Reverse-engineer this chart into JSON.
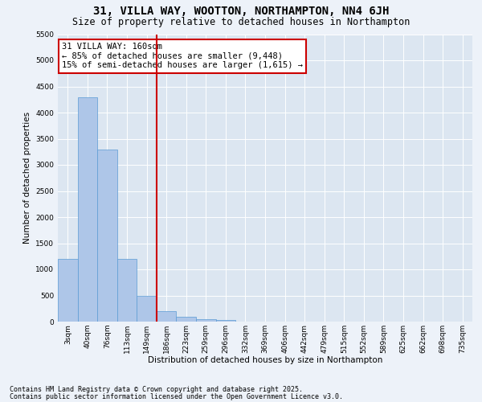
{
  "title": "31, VILLA WAY, WOOTTON, NORTHAMPTON, NN4 6JH",
  "subtitle": "Size of property relative to detached houses in Northampton",
  "xlabel": "Distribution of detached houses by size in Northampton",
  "ylabel": "Number of detached properties",
  "bin_labels": [
    "3sqm",
    "40sqm",
    "76sqm",
    "113sqm",
    "149sqm",
    "186sqm",
    "223sqm",
    "259sqm",
    "296sqm",
    "332sqm",
    "369sqm",
    "406sqm",
    "442sqm",
    "479sqm",
    "515sqm",
    "552sqm",
    "589sqm",
    "625sqm",
    "662sqm",
    "698sqm",
    "735sqm"
  ],
  "bar_heights": [
    1200,
    4300,
    3300,
    1200,
    500,
    200,
    90,
    50,
    30,
    0,
    0,
    0,
    0,
    0,
    0,
    0,
    0,
    0,
    0,
    0,
    0
  ],
  "bar_color": "#aec6e8",
  "bar_edge_color": "#5b9bd5",
  "property_bin_index": 4,
  "property_label": "31 VILLA WAY: 160sqm",
  "annotation_line1": "← 85% of detached houses are smaller (9,448)",
  "annotation_line2": "15% of semi-detached houses are larger (1,615) →",
  "vline_color": "#cc0000",
  "annotation_box_edge_color": "#cc0000",
  "ylim": [
    0,
    5500
  ],
  "yticks": [
    0,
    500,
    1000,
    1500,
    2000,
    2500,
    3000,
    3500,
    4000,
    4500,
    5000,
    5500
  ],
  "footnote1": "Contains HM Land Registry data © Crown copyright and database right 2025.",
  "footnote2": "Contains public sector information licensed under the Open Government Licence v3.0.",
  "bg_color": "#edf2f9",
  "plot_bg_color": "#dce6f1",
  "grid_color": "#ffffff",
  "title_fontsize": 10,
  "subtitle_fontsize": 8.5,
  "axis_label_fontsize": 7.5,
  "tick_fontsize": 6.5,
  "annotation_fontsize": 7.5,
  "footnote_fontsize": 6
}
